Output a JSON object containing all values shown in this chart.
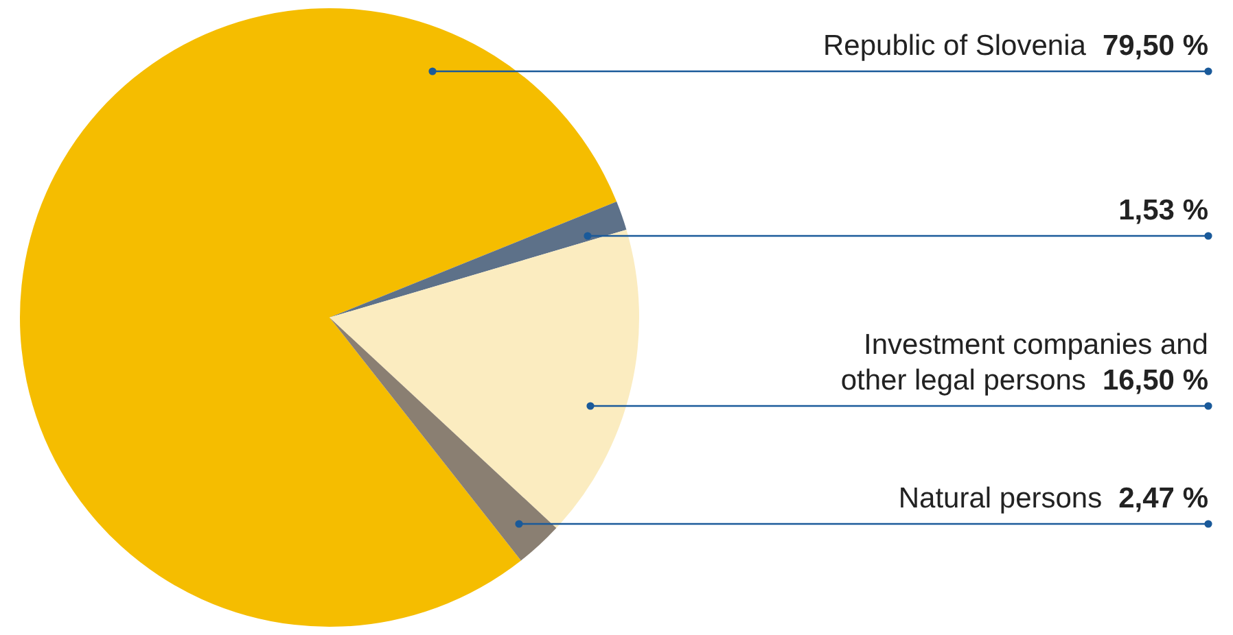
{
  "chart_data": {
    "type": "pie",
    "categories": [
      "Republic of Slovenia",
      null,
      "Investment companies and other legal persons",
      "Natural persons"
    ],
    "values": [
      79.5,
      1.53,
      16.5,
      2.47
    ],
    "value_labels": [
      "79,50 %",
      "1,53 %",
      "16,50 %",
      "2,47 %"
    ],
    "colors": [
      "#f5bd00",
      "#5d7189",
      "#fbecc0",
      "#8a7f72"
    ],
    "legend": false
  }
}
